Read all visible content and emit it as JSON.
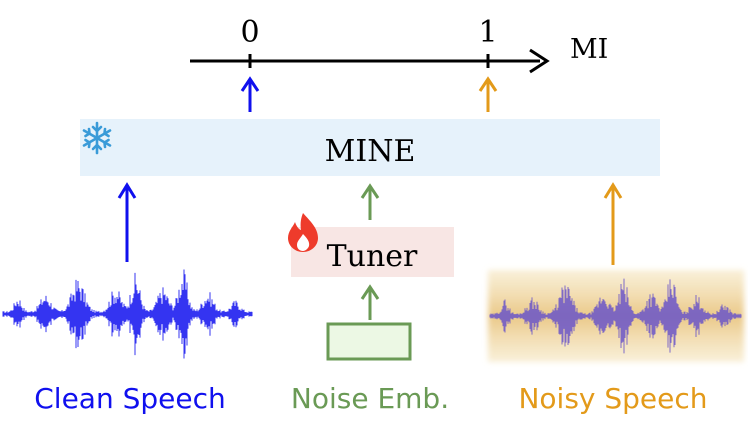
{
  "axis": {
    "tick_zero": "0",
    "tick_one": "1",
    "label": "MI"
  },
  "mine": {
    "label": "MINE",
    "frozen_icon": "snowflake-icon"
  },
  "tuner": {
    "label": "Tuner",
    "trainable_icon": "fire-icon"
  },
  "inputs": {
    "clean": "Clean Speech",
    "noise": "Noise Emb.",
    "noisy": "Noisy Speech"
  },
  "colors": {
    "clean": "#1010ee",
    "noise": "#6a9a55",
    "noisy": "#e39a1a",
    "mine_box": "#e6f2fb",
    "tuner_box": "#f8e6e4",
    "noise_box": "#ecf8e4",
    "snowflake": "#3a9bd8",
    "fire": "#ee3b2b"
  }
}
